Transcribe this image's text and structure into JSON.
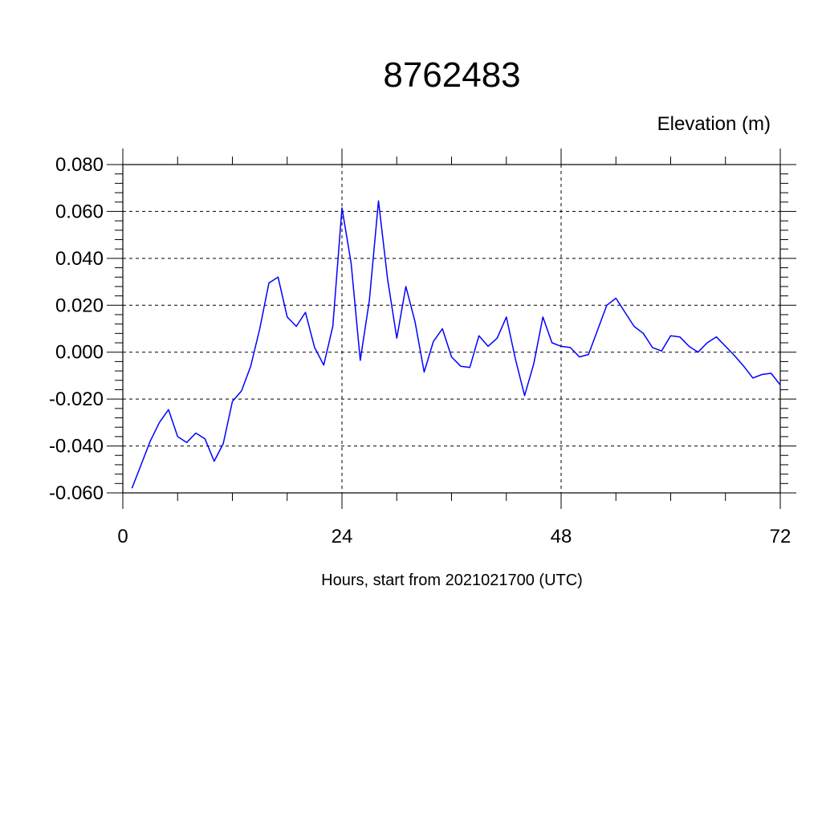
{
  "chart_data": {
    "type": "line",
    "title": "8762483",
    "ylabel": "Elevation (m)",
    "xlabel": "Hours, start from 2021021700 (UTC)",
    "xlim": [
      0,
      72
    ],
    "ylim": [
      -0.06,
      0.08
    ],
    "x_ticks": [
      0,
      24,
      48,
      72
    ],
    "x_tick_labels": [
      "0",
      "24",
      "48",
      "72"
    ],
    "y_ticks": [
      -0.06,
      -0.04,
      -0.02,
      0.0,
      0.02,
      0.04,
      0.06,
      0.08
    ],
    "y_tick_labels": [
      "-0.060",
      "-0.040",
      "-0.020",
      "0.000",
      "0.020",
      "0.040",
      "0.060",
      "0.080"
    ],
    "grid": true,
    "line_color": "#0000ff",
    "series": [
      {
        "x": [
          1,
          2,
          3,
          4,
          5,
          6,
          7,
          8,
          9,
          10,
          11,
          12,
          13,
          14,
          15,
          16,
          17,
          18,
          19,
          20,
          21,
          22,
          23,
          24,
          25,
          26,
          27,
          28,
          29,
          30,
          31,
          32,
          33,
          34,
          35,
          36,
          37,
          38,
          39,
          40,
          41,
          42,
          43,
          44,
          45,
          46,
          47,
          48,
          49,
          50,
          51,
          52,
          53,
          54,
          55,
          56,
          57,
          58,
          59,
          60,
          61,
          62,
          63,
          64,
          65,
          66,
          67,
          68,
          69,
          70,
          71,
          72
        ],
        "values": [
          -0.058,
          -0.048,
          -0.038,
          -0.03,
          -0.0245,
          -0.036,
          -0.0385,
          -0.0345,
          -0.037,
          -0.0465,
          -0.039,
          -0.021,
          -0.0165,
          -0.006,
          0.01,
          0.0295,
          0.032,
          0.015,
          0.011,
          0.017,
          0.002,
          -0.0055,
          0.011,
          0.0615,
          0.038,
          -0.0035,
          0.022,
          0.0645,
          0.031,
          0.006,
          0.028,
          0.013,
          -0.0085,
          0.0045,
          0.01,
          -0.002,
          -0.006,
          -0.0065,
          0.007,
          0.0025,
          0.006,
          0.015,
          -0.003,
          -0.0185,
          -0.005,
          0.015,
          0.004,
          0.0025,
          0.002,
          -0.002,
          -0.001,
          0.0095,
          0.02,
          0.023,
          0.017,
          0.011,
          0.008,
          0.002,
          0.0005,
          0.007,
          0.0065,
          0.0025,
          0.0,
          0.004,
          0.0065,
          0.0025,
          -0.0015,
          -0.006,
          -0.011,
          -0.0095,
          -0.009,
          -0.014
        ]
      }
    ]
  }
}
